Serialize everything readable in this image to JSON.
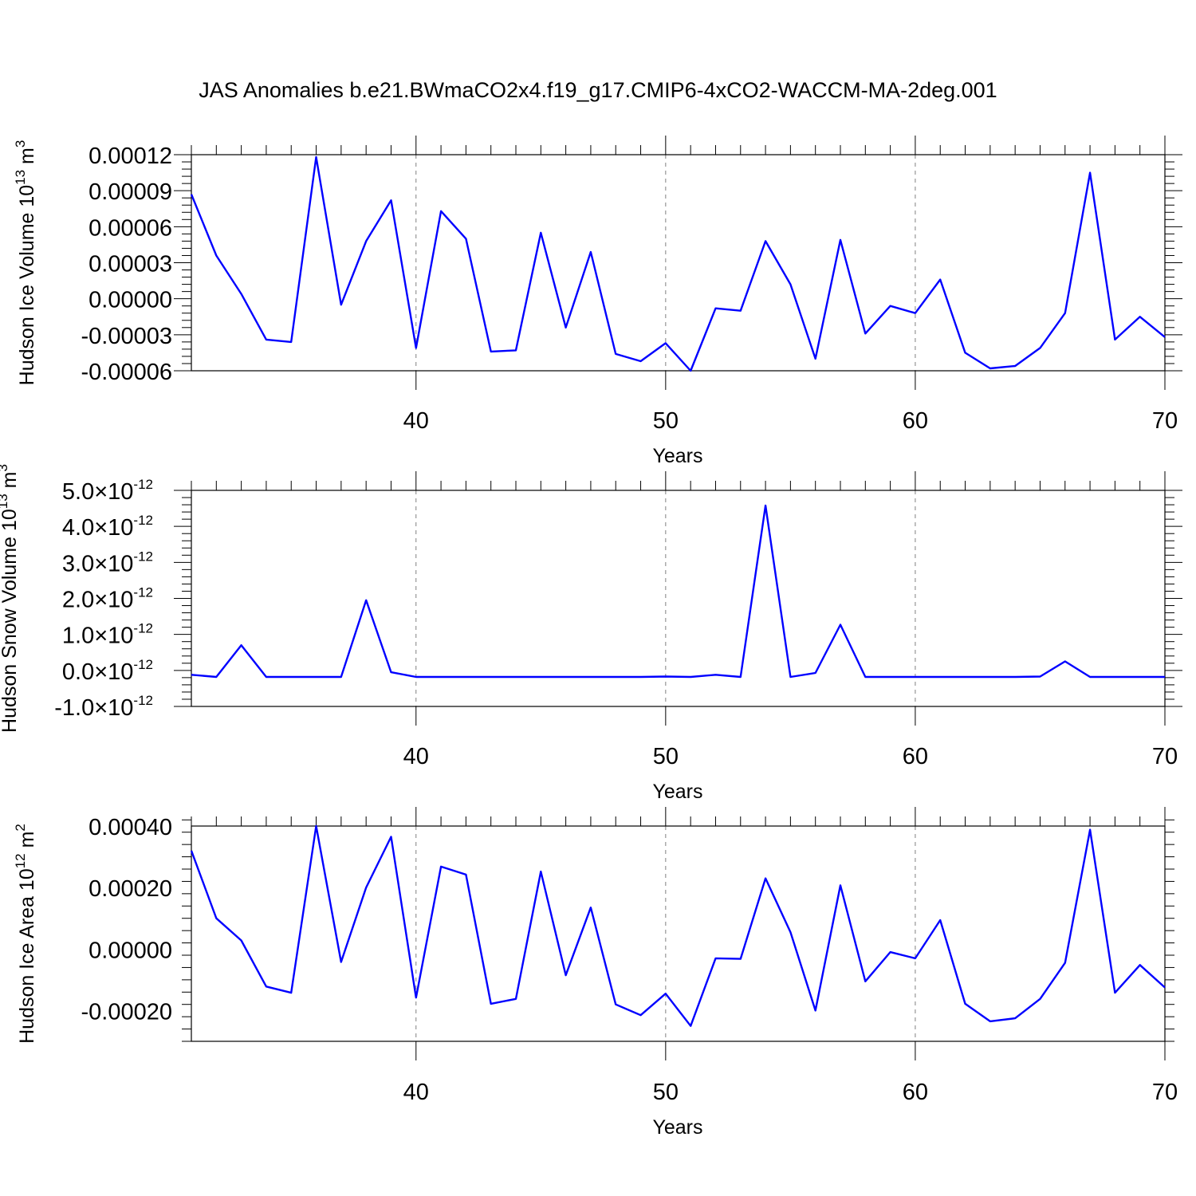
{
  "title": "JAS Anomalies b.e21.BWmaCO2x4.f19_g17.CMIP6-4xCO2-WACCM-MA-2deg.001",
  "colors": {
    "line": "#0000ff",
    "axis": "#000000",
    "grid": "#808080"
  },
  "chart_data": [
    {
      "type": "line",
      "ylabel": {
        "main": "Hudson Ice Volume 10",
        "exponent": "13",
        "unit": " m",
        "unit_exponent": "3"
      },
      "xlabel": "Years",
      "xlim": [
        31,
        70
      ],
      "ylim": [
        -6e-05,
        0.00012
      ],
      "x_ticks": [
        40,
        50,
        60,
        70
      ],
      "x_tick_labels": [
        "40",
        "50",
        "60",
        "70"
      ],
      "y_ticks": [
        -6e-05,
        -3e-05,
        0.0,
        3e-05,
        6e-05,
        9e-05,
        0.00012
      ],
      "y_tick_labels": [
        "-0.00006",
        "-0.00003",
        "0.00000",
        "0.00003",
        "0.00006",
        "0.00009",
        "0.00012"
      ],
      "x": [
        31,
        32,
        33,
        34,
        35,
        36,
        37,
        38,
        39,
        40,
        41,
        42,
        43,
        44,
        45,
        46,
        47,
        48,
        49,
        50,
        51,
        52,
        53,
        54,
        55,
        56,
        57,
        58,
        59,
        60,
        61,
        62,
        63,
        64,
        65,
        66,
        67,
        68,
        69,
        70
      ],
      "values": [
        8.7e-05,
        3.6e-05,
        4e-06,
        -3.4e-05,
        -3.6e-05,
        0.000118,
        -5e-06,
        4.8e-05,
        8.2e-05,
        -4.1e-05,
        7.3e-05,
        5e-05,
        -4.4e-05,
        -4.3e-05,
        5.5e-05,
        -2.4e-05,
        3.9e-05,
        -4.6e-05,
        -5.2e-05,
        -3.7e-05,
        -6e-05,
        -8e-06,
        -1e-05,
        4.8e-05,
        1.2e-05,
        -5e-05,
        4.9e-05,
        -2.9e-05,
        -6e-06,
        -1.2e-05,
        1.6e-05,
        -4.5e-05,
        -5.8e-05,
        -5.6e-05,
        -4.1e-05,
        -1.2e-05,
        0.000105,
        -3.4e-05,
        -1.5e-05,
        -3.2e-05
      ]
    },
    {
      "type": "line",
      "ylabel": {
        "main": "Hudson Snow Volume 10",
        "exponent": "13",
        "unit": " m",
        "unit_exponent": "3"
      },
      "xlabel": "Years",
      "xlim": [
        31,
        70
      ],
      "ylim": [
        -1e-12,
        5e-12
      ],
      "x_ticks": [
        40,
        50,
        60,
        70
      ],
      "x_tick_labels": [
        "40",
        "50",
        "60",
        "70"
      ],
      "y_ticks": [
        -1e-12,
        0.0,
        1e-12,
        2e-12,
        3e-12,
        4e-12,
        5e-12
      ],
      "y_tick_mantissas": [
        "-1.0",
        "0.0",
        "1.0",
        "2.0",
        "3.0",
        "4.0",
        "5.0"
      ],
      "y_tick_times": "×10",
      "y_tick_exponent": "-12",
      "x": [
        31,
        32,
        33,
        34,
        35,
        36,
        37,
        38,
        39,
        40,
        41,
        42,
        43,
        44,
        45,
        46,
        47,
        48,
        49,
        50,
        51,
        52,
        53,
        54,
        55,
        56,
        57,
        58,
        59,
        60,
        61,
        62,
        63,
        64,
        65,
        66,
        67,
        68,
        69,
        70
      ],
      "values": [
        -1.2e-13,
        -1.8e-13,
        7e-13,
        -1.8e-13,
        -1.8e-13,
        -1.8e-13,
        -1.8e-13,
        1.95e-12,
        -5e-14,
        -1.8e-13,
        -1.8e-13,
        -1.8e-13,
        -1.8e-13,
        -1.8e-13,
        -1.8e-13,
        -1.8e-13,
        -1.8e-13,
        -1.8e-13,
        -1.8e-13,
        -1.7e-13,
        -1.8e-13,
        -1.2e-13,
        -1.8e-13,
        4.58e-12,
        -1.8e-13,
        -7e-14,
        1.27e-12,
        -1.8e-13,
        -1.8e-13,
        -1.8e-13,
        -1.8e-13,
        -1.8e-13,
        -1.8e-13,
        -1.8e-13,
        -1.7e-13,
        2.5e-13,
        -1.8e-13,
        -1.8e-13,
        -1.8e-13,
        -1.8e-13
      ]
    },
    {
      "type": "line",
      "ylabel": {
        "main": "Hudson Ice Area 10",
        "exponent": "12",
        "unit": " m",
        "unit_exponent": "2"
      },
      "xlabel": "Years",
      "xlim": [
        31,
        70
      ],
      "ylim": [
        -0.0003,
        0.0004
      ],
      "x_ticks": [
        40,
        50,
        60,
        70
      ],
      "x_tick_labels": [
        "40",
        "50",
        "60",
        "70"
      ],
      "y_ticks": [
        -0.0002,
        0.0,
        0.0002,
        0.0004
      ],
      "y_tick_labels": [
        "-0.00020",
        "0.00000",
        "0.00020",
        "0.00040"
      ],
      "x": [
        31,
        32,
        33,
        34,
        35,
        36,
        37,
        38,
        39,
        40,
        41,
        42,
        43,
        44,
        45,
        46,
        47,
        48,
        49,
        50,
        51,
        52,
        53,
        54,
        55,
        56,
        57,
        58,
        59,
        60,
        61,
        62,
        63,
        64,
        65,
        66,
        67,
        68,
        69,
        70
      ],
      "values": [
        0.00032,
        0.0001,
        2.8e-05,
        -0.000122,
        -0.000142,
        0.0004,
        -4.2e-05,
        0.0002,
        0.000365,
        -0.000158,
        0.000268,
        0.000242,
        -0.000178,
        -0.000162,
        0.000252,
        -8.5e-05,
        0.000135,
        -0.00018,
        -0.000215,
        -0.000145,
        -0.00025,
        -3e-05,
        -3.2e-05,
        0.00023,
        5.5e-05,
        -0.0002,
        0.000207,
        -0.000105,
        -1e-05,
        -3e-05,
        9.4e-05,
        -0.000178,
        -0.000235,
        -0.000225,
        -0.000162,
        -4.5e-05,
        0.000388,
        -0.000142,
        -5.2e-05,
        -0.000125
      ]
    }
  ]
}
